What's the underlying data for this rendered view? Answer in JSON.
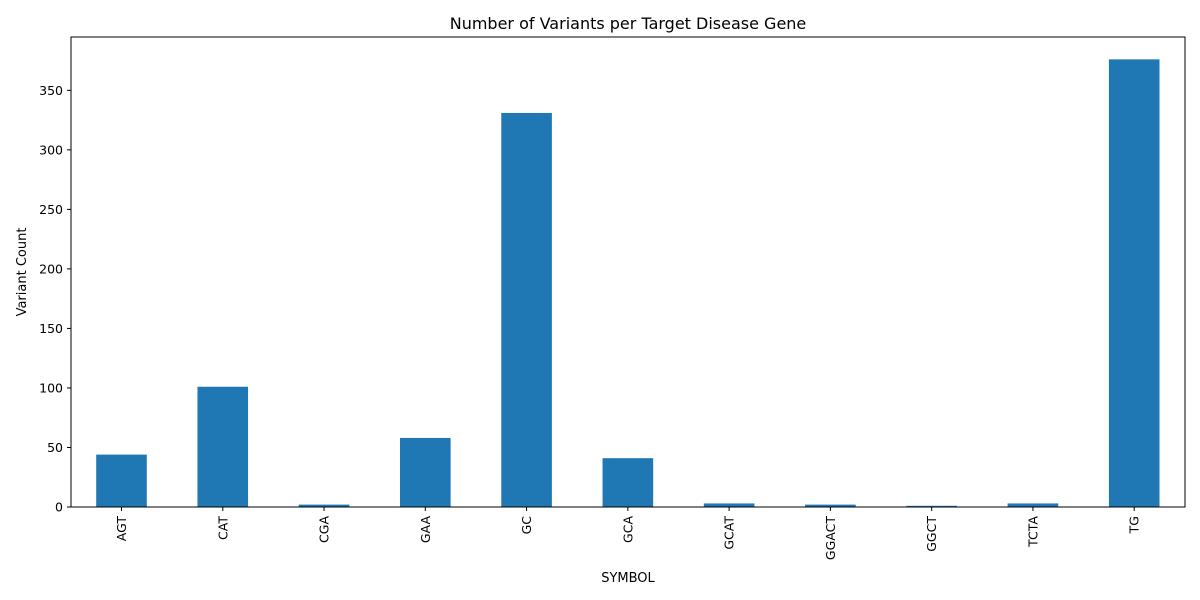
{
  "chart_data": {
    "type": "bar",
    "title": "Number of Variants per Target Disease Gene",
    "xlabel": "SYMBOL",
    "ylabel": "Variant Count",
    "categories": [
      "AGT",
      "CAT",
      "CGA",
      "GAA",
      "GC",
      "GCA",
      "GCAT",
      "GGACT",
      "GGCT",
      "TCTA",
      "TG"
    ],
    "values": [
      44,
      101,
      2,
      58,
      331,
      41,
      3,
      2,
      1,
      3,
      376
    ],
    "ylim": [
      0,
      394.8
    ],
    "yticks": [
      0,
      50,
      100,
      150,
      200,
      250,
      300,
      350
    ],
    "bar_color": "#1f77b4",
    "grid": false,
    "legend": "none"
  }
}
